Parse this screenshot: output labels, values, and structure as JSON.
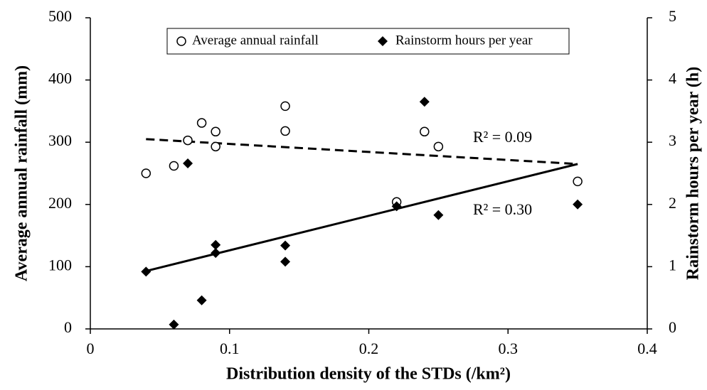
{
  "chart_data": {
    "type": "scatter",
    "xlabel": "Distribution density of the STDs (/km²)",
    "ylabel": "Average annual rainfall (mm)",
    "y2label": "Rainstorm hours per year (h)",
    "xlim": [
      0,
      0.4
    ],
    "xticks": [
      0,
      0.1,
      0.2,
      0.3,
      0.4
    ],
    "ylim": [
      0,
      500
    ],
    "yticks": [
      0,
      100,
      200,
      300,
      400,
      500
    ],
    "y2lim": [
      0,
      5
    ],
    "y2ticks": [
      0,
      1,
      2,
      3,
      4,
      5
    ],
    "legend": "upper center",
    "series": [
      {
        "name": "Average annual rainfall",
        "color": "#000000",
        "marker": "circle",
        "axis": "y",
        "x": [
          0.04,
          0.06,
          0.07,
          0.08,
          0.09,
          0.09,
          0.14,
          0.14,
          0.22,
          0.24,
          0.25,
          0.35
        ],
        "values": [
          250,
          262,
          303,
          331,
          317,
          293,
          358,
          318,
          204,
          317,
          293,
          237
        ],
        "trend": {
          "x": [
            0.04,
            0.35
          ],
          "y": [
            305,
            265
          ],
          "style": "dashed",
          "label": "R² = 0.09"
        }
      },
      {
        "name": "Rainstorm hours per year",
        "color": "#000000",
        "marker": "diamond",
        "axis": "y2",
        "x": [
          0.04,
          0.06,
          0.07,
          0.08,
          0.09,
          0.09,
          0.14,
          0.14,
          0.22,
          0.24,
          0.25,
          0.35
        ],
        "values": [
          0.92,
          0.07,
          2.66,
          0.46,
          1.35,
          1.22,
          1.34,
          1.08,
          1.97,
          3.65,
          1.83,
          2.0
        ],
        "trend": {
          "x": [
            0.04,
            0.35
          ],
          "y": [
            0.93,
            2.65
          ],
          "style": "solid",
          "label": "R² = 0.30"
        }
      }
    ]
  }
}
